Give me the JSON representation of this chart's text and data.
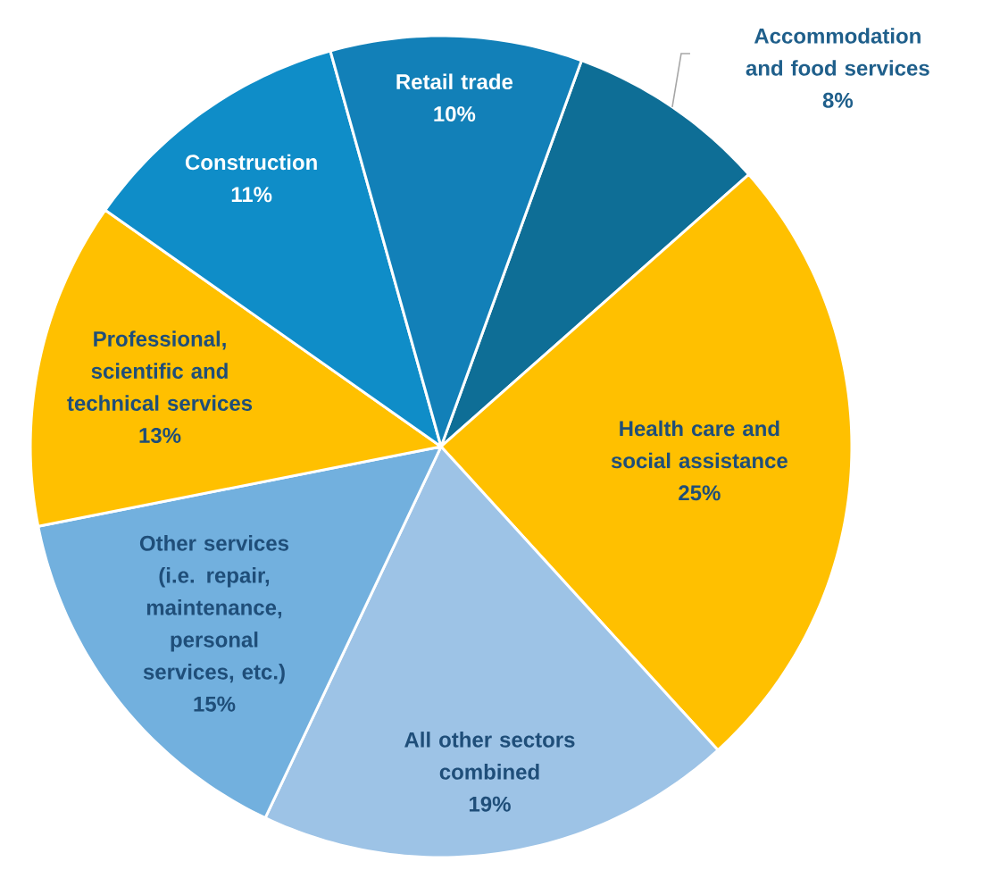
{
  "chart_data": {
    "type": "pie",
    "categories": [
      "Accommodation and food services",
      "Health care and social assistance",
      "All other sectors combined",
      "Other services (i.e. repair, maintenance, personal services, etc.)",
      "Professional, scientific and technical services",
      "Construction",
      "Retail trade"
    ],
    "values": [
      8,
      25,
      19,
      15,
      13,
      11,
      10
    ],
    "value_labels": [
      "8%",
      "25%",
      "19%",
      "15%",
      "13%",
      "11%",
      "10%"
    ],
    "colors": [
      "#0e6e96",
      "#ffc000",
      "#9dc3e6",
      "#72b0de",
      "#ffc000",
      "#0f8dc8",
      "#1280b8"
    ]
  }
}
